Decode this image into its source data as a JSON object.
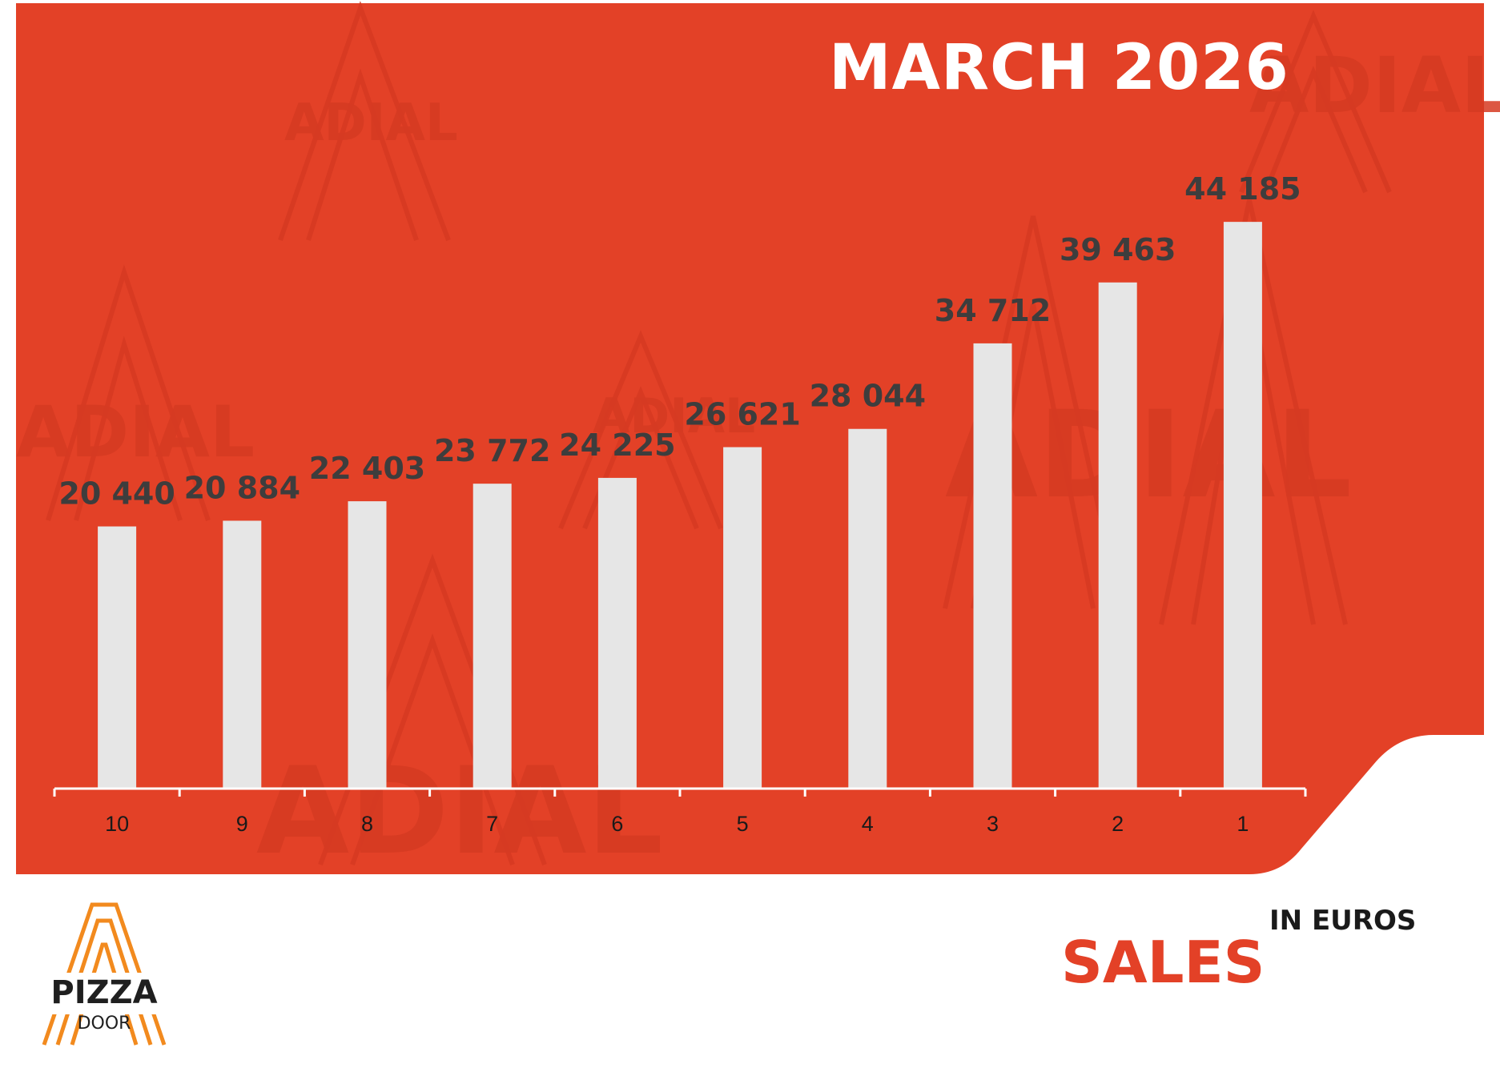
{
  "header": {
    "title": "MARCH 2026"
  },
  "footer": {
    "metric_label": "SALES",
    "unit_label": "IN EUROS",
    "logo_word_top": "PIZZA",
    "logo_word_bottom": "DOOR"
  },
  "watermark": {
    "text": "ADIAL"
  },
  "colors": {
    "background": "#e34127",
    "bar": "#e6e6e6",
    "value_label": "#3d3d3d",
    "axis": "#ffffff",
    "logo_orange": "#f28a1e"
  },
  "chart_data": {
    "type": "bar",
    "categories": [
      "10",
      "9",
      "8",
      "7",
      "6",
      "5",
      "4",
      "3",
      "2",
      "1"
    ],
    "values": [
      20440,
      20884,
      22403,
      23772,
      24225,
      26621,
      28044,
      34712,
      39463,
      44185
    ],
    "value_labels": [
      "20 440",
      "20 884",
      "22 403",
      "23 772",
      "24 225",
      "26 621",
      "28 044",
      "34 712",
      "39 463",
      "44 185"
    ],
    "title": "MARCH 2026",
    "xlabel": "",
    "ylabel": "",
    "ylim": [
      0,
      49000
    ],
    "grid": false,
    "legend": "none"
  }
}
